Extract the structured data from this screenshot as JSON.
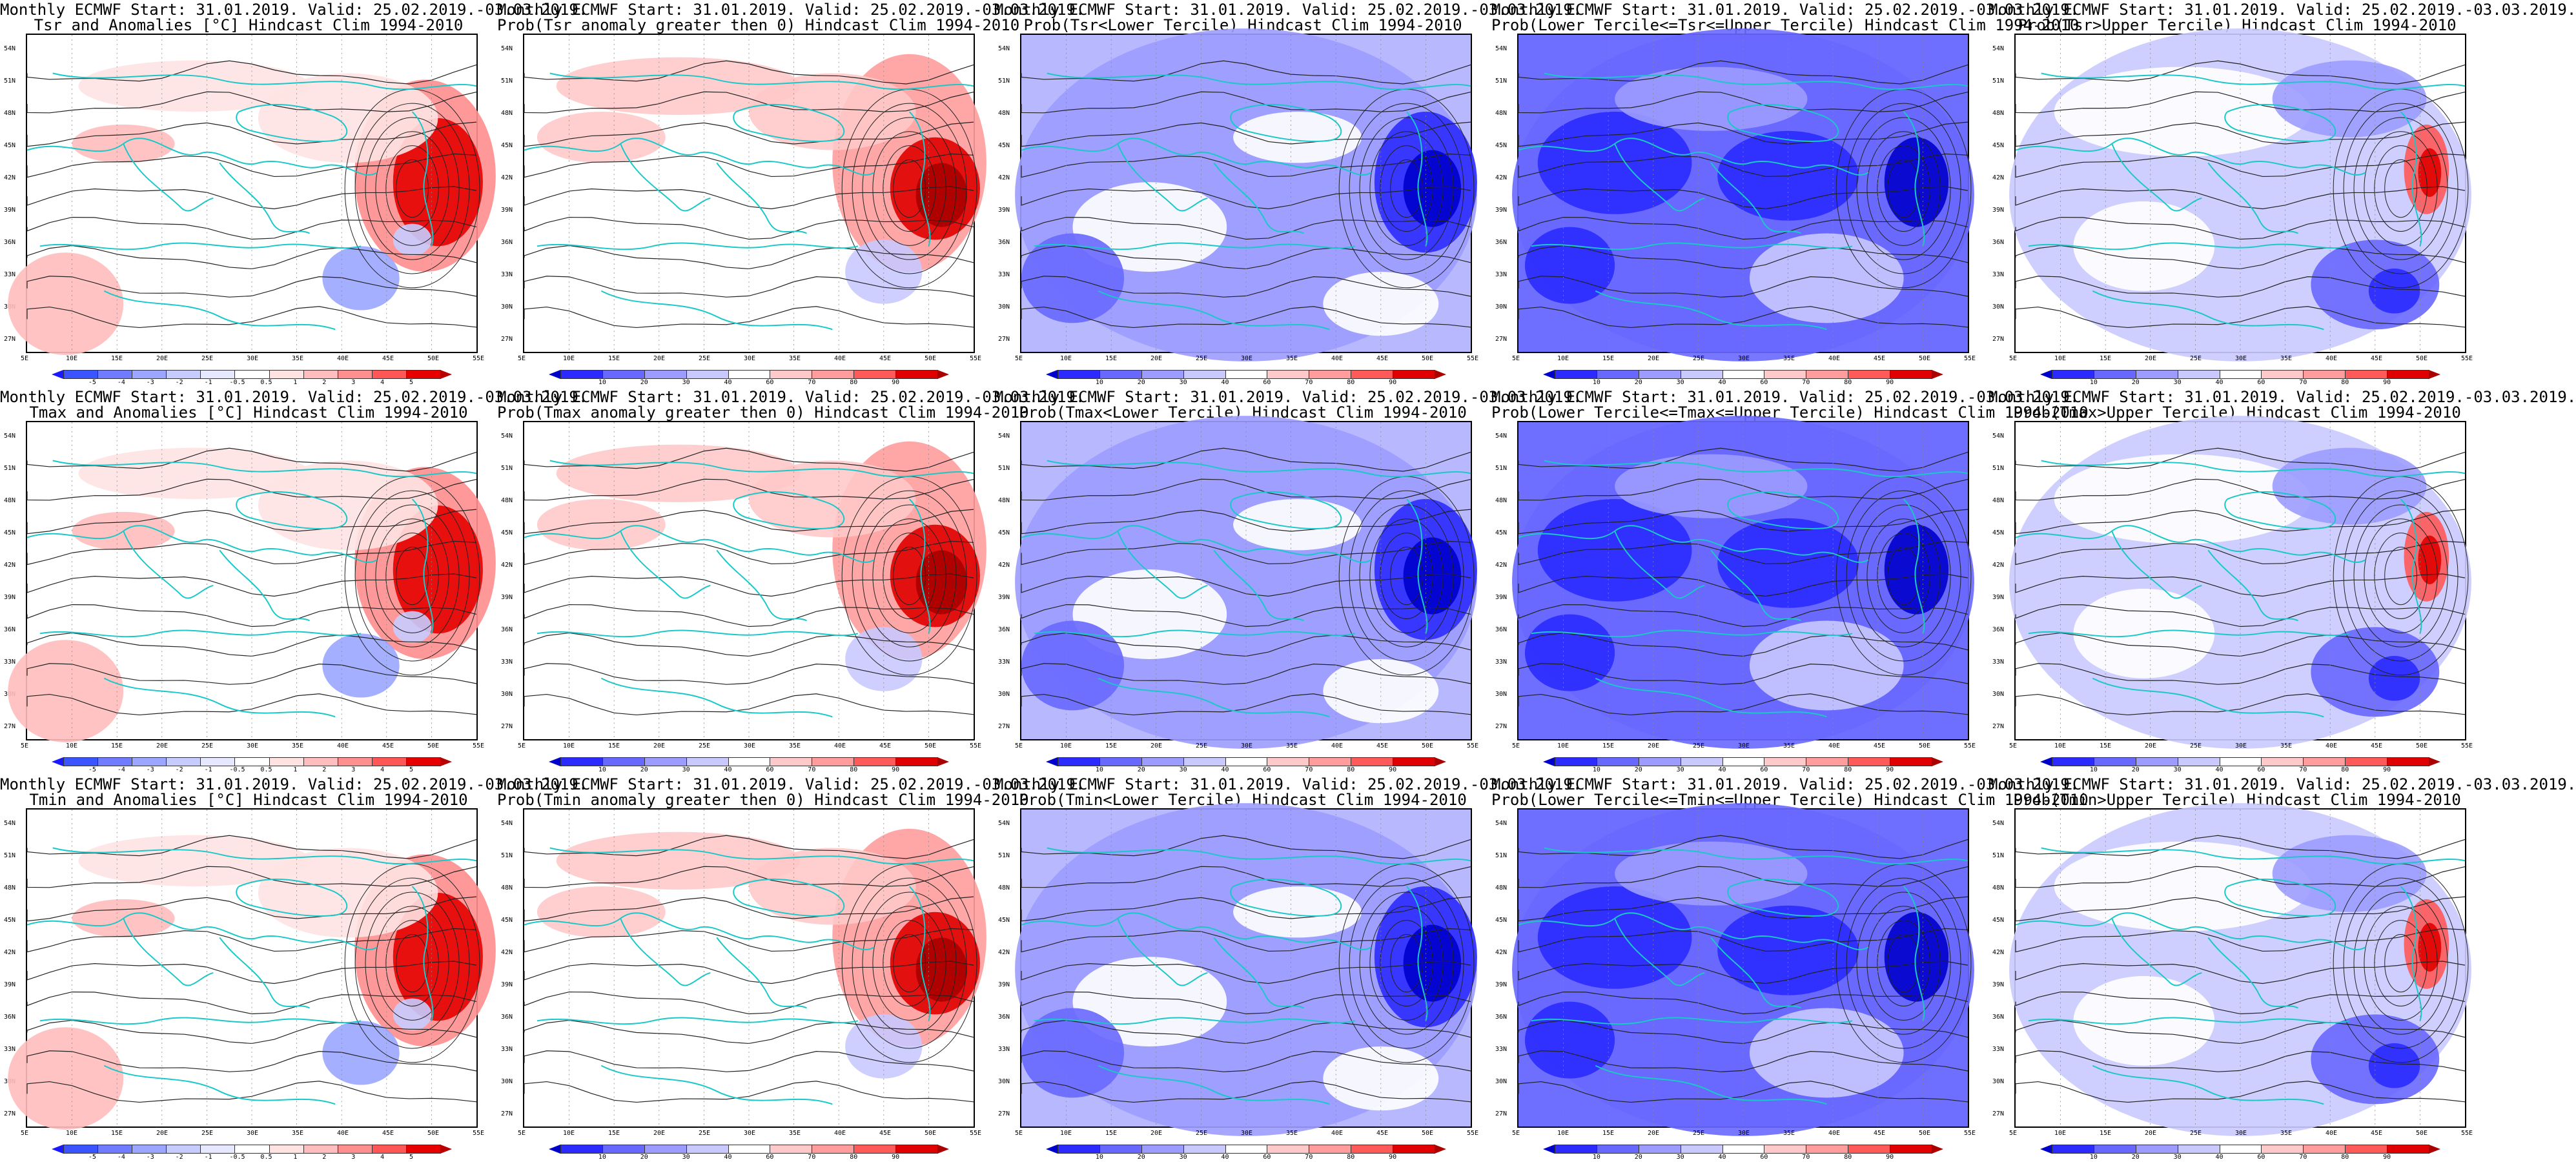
{
  "panels": [
    {
      "title1": "Monthly ECMWF Start: 31.01.2019. Valid: 25.02.2019.-03.03.2019.",
      "title2": "Tsr and Anomalies [°C] Hindcast Clim 1994-2010",
      "kind": "anom",
      "cbar": [
        "-5",
        "-4",
        "-3",
        "-2",
        "-1",
        "-0.5",
        "0.5",
        "1",
        "2",
        "3",
        "4",
        "5"
      ]
    },
    {
      "title1": "Monthly ECMWF Start: 31.01.2019. Valid: 25.02.2019.-03.03.2019.",
      "title2": "Prob(Tsr anomaly greater then 0) Hindcast Clim 1994-2010",
      "kind": "probwarm",
      "cbar": [
        "10",
        "20",
        "30",
        "40",
        "60",
        "70",
        "80",
        "90"
      ]
    },
    {
      "title1": "Monthly ECMWF Start: 31.01.2019. Valid: 25.02.2019.-03.03.2019.",
      "title2": "Prob(Tsr<Lower Tercile) Hindcast Clim 1994-2010",
      "kind": "probcold",
      "cbar": [
        "10",
        "20",
        "30",
        "40",
        "60",
        "70",
        "80",
        "90"
      ]
    },
    {
      "title1": "Monthly ECMWF Start: 31.01.2019. Valid: 25.02.2019.-03.03.2019.",
      "title2": "Prob(Lower Tercile<=Tsr<=Upper Tercile) Hindcast Clim 1994-2010",
      "kind": "probmid",
      "cbar": [
        "10",
        "20",
        "30",
        "40",
        "60",
        "70",
        "80",
        "90"
      ]
    },
    {
      "title1": "Monthly ECMWF Start: 31.01.2019. Valid: 25.02.2019.-03.03.2019.",
      "title2": "Prob(Tsr>Upper Tercile) Hindcast Clim 1994-2010",
      "kind": "probupper",
      "cbar": [
        "10",
        "20",
        "30",
        "40",
        "60",
        "70",
        "80",
        "90"
      ]
    },
    {
      "title1": "Monthly ECMWF Start: 31.01.2019. Valid: 25.02.2019.-03.03.2019.",
      "title2": "Tmax and Anomalies [°C] Hindcast Clim 1994-2010",
      "kind": "anom",
      "cbar": [
        "-5",
        "-4",
        "-3",
        "-2",
        "-1",
        "-0.5",
        "0.5",
        "1",
        "2",
        "3",
        "4",
        "5"
      ]
    },
    {
      "title1": "Monthly ECMWF Start: 31.01.2019. Valid: 25.02.2019.-03.03.2019.",
      "title2": "Prob(Tmax anomaly greater then 0) Hindcast Clim 1994-2010",
      "kind": "probwarm",
      "cbar": [
        "10",
        "20",
        "30",
        "40",
        "60",
        "70",
        "80",
        "90"
      ]
    },
    {
      "title1": "Monthly ECMWF Start: 31.01.2019. Valid: 25.02.2019.-03.03.2019.",
      "title2": "Prob(Tmax<Lower Tercile) Hindcast Clim 1994-2010",
      "kind": "probcold",
      "cbar": [
        "10",
        "20",
        "30",
        "40",
        "60",
        "70",
        "80",
        "90"
      ]
    },
    {
      "title1": "Monthly ECMWF Start: 31.01.2019. Valid: 25.02.2019.-03.03.2019.",
      "title2": "Prob(Lower Tercile<=Tmax<=Upper Tercile) Hindcast Clim 1994-2010",
      "kind": "probmid",
      "cbar": [
        "10",
        "20",
        "30",
        "40",
        "60",
        "70",
        "80",
        "90"
      ]
    },
    {
      "title1": "Monthly ECMWF Start: 31.01.2019. Valid: 25.02.2019.-03.03.2019.",
      "title2": "Prob(Tmax>Upper Tercile) Hindcast Clim 1994-2010",
      "kind": "probupper",
      "cbar": [
        "10",
        "20",
        "30",
        "40",
        "60",
        "70",
        "80",
        "90"
      ]
    },
    {
      "title1": "Monthly ECMWF Start: 31.01.2019. Valid: 25.02.2019.-03.03.2019.",
      "title2": "Tmin and Anomalies [°C] Hindcast Clim 1994-2010",
      "kind": "anom",
      "cbar": [
        "-5",
        "-4",
        "-3",
        "-2",
        "-1",
        "-0.5",
        "0.5",
        "1",
        "2",
        "3",
        "4",
        "5"
      ]
    },
    {
      "title1": "Monthly ECMWF Start: 31.01.2019. Valid: 25.02.2019.-03.03.2019.",
      "title2": "Prob(Tmin anomaly greater then 0) Hindcast Clim 1994-2010",
      "kind": "probwarm",
      "cbar": [
        "10",
        "20",
        "30",
        "40",
        "60",
        "70",
        "80",
        "90"
      ]
    },
    {
      "title1": "Monthly ECMWF Start: 31.01.2019. Valid: 25.02.2019.-03.03.2019.",
      "title2": "Prob(Tmin<Lower Tercile) Hindcast Clim 1994-2010",
      "kind": "probcold",
      "cbar": [
        "10",
        "20",
        "30",
        "40",
        "60",
        "70",
        "80",
        "90"
      ]
    },
    {
      "title1": "Monthly ECMWF Start: 31.01.2019. Valid: 25.02.2019.-03.03.2019.",
      "title2": "Prob(Lower Tercile<=Tmin<=Upper Tercile) Hindcast Clim 1994-2010",
      "kind": "probmid",
      "cbar": [
        "10",
        "20",
        "30",
        "40",
        "60",
        "70",
        "80",
        "90"
      ]
    },
    {
      "title1": "Monthly ECMWF Start: 31.01.2019. Valid: 25.02.2019.-03.03.2019.",
      "title2": "Prob(Tmin>Upper Tercile) Hindcast Clim 1994-2010",
      "kind": "probupper",
      "cbar": [
        "10",
        "20",
        "30",
        "40",
        "60",
        "70",
        "80",
        "90"
      ]
    }
  ],
  "lat_labels": [
    "54N",
    "51N",
    "48N",
    "45N",
    "42N",
    "39N",
    "36N",
    "33N",
    "30N",
    "27N"
  ],
  "lon_labels": [
    "5E",
    "10E",
    "15E",
    "20E",
    "25E",
    "30E",
    "35E",
    "40E",
    "45E",
    "50E",
    "55E"
  ],
  "colors": {
    "anom": [
      "#1a1aff",
      "#3a55ff",
      "#6f7cff",
      "#9aa6ff",
      "#c6ccff",
      "#e6e8ff",
      "#ffffff",
      "#ffe3e3",
      "#ffbdbd",
      "#ff8e8e",
      "#ff5656",
      "#e60000",
      "#b80000"
    ],
    "prob": [
      "#0000cc",
      "#2b2bff",
      "#6868ff",
      "#9c9cff",
      "#c9c9ff",
      "#ffffff",
      "#ffc9c9",
      "#ff9c9c",
      "#ff5a5a",
      "#e00000",
      "#aa0000"
    ],
    "coast": "#19c8c8",
    "contour": "#222222"
  }
}
